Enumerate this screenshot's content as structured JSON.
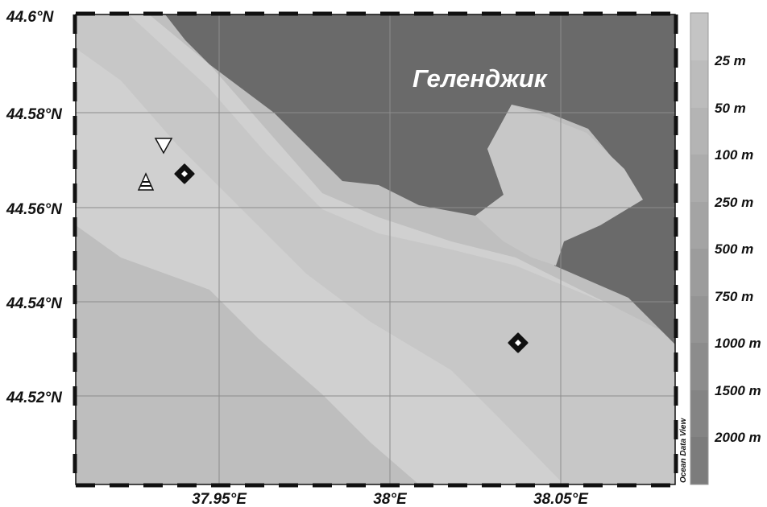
{
  "map": {
    "place_name": "Геленджик",
    "credit": "Ocean Data View",
    "lat_labels": [
      "44.6°N",
      "44.58°N",
      "44.56°N",
      "44.54°N",
      "44.52°N"
    ],
    "lon_labels": [
      "37.95°E",
      "38°E",
      "38.05°E"
    ],
    "colors": {
      "land": "#6a6a6a",
      "shelf_0_25": "#d0d0d0",
      "shelf_25_50": "#c7c7c7",
      "depth_50_100": "#bebebe",
      "depth_100_250": "#b5b5b5",
      "grid": "#8c8c8c"
    }
  },
  "legend": {
    "labels": [
      "25 m",
      "50 m",
      "100 m",
      "250 m",
      "500 m",
      "750 m",
      "1000 m",
      "1500 m",
      "2000 m"
    ],
    "colors": [
      "#c4c4c4",
      "#bcbcbc",
      "#b4b4b4",
      "#acacac",
      "#a4a4a4",
      "#9c9c9c",
      "#949494",
      "#8c8c8c",
      "#848484",
      "#7c7c7c"
    ]
  },
  "markers": [
    {
      "name": "station-triangle-down",
      "symbol": "triangle-down-icon"
    },
    {
      "name": "station-triangle-striped",
      "symbol": "striped-triangle-icon"
    },
    {
      "name": "station-diamond-1",
      "symbol": "diamond-icon"
    },
    {
      "name": "station-diamond-2",
      "symbol": "diamond-icon"
    }
  ]
}
